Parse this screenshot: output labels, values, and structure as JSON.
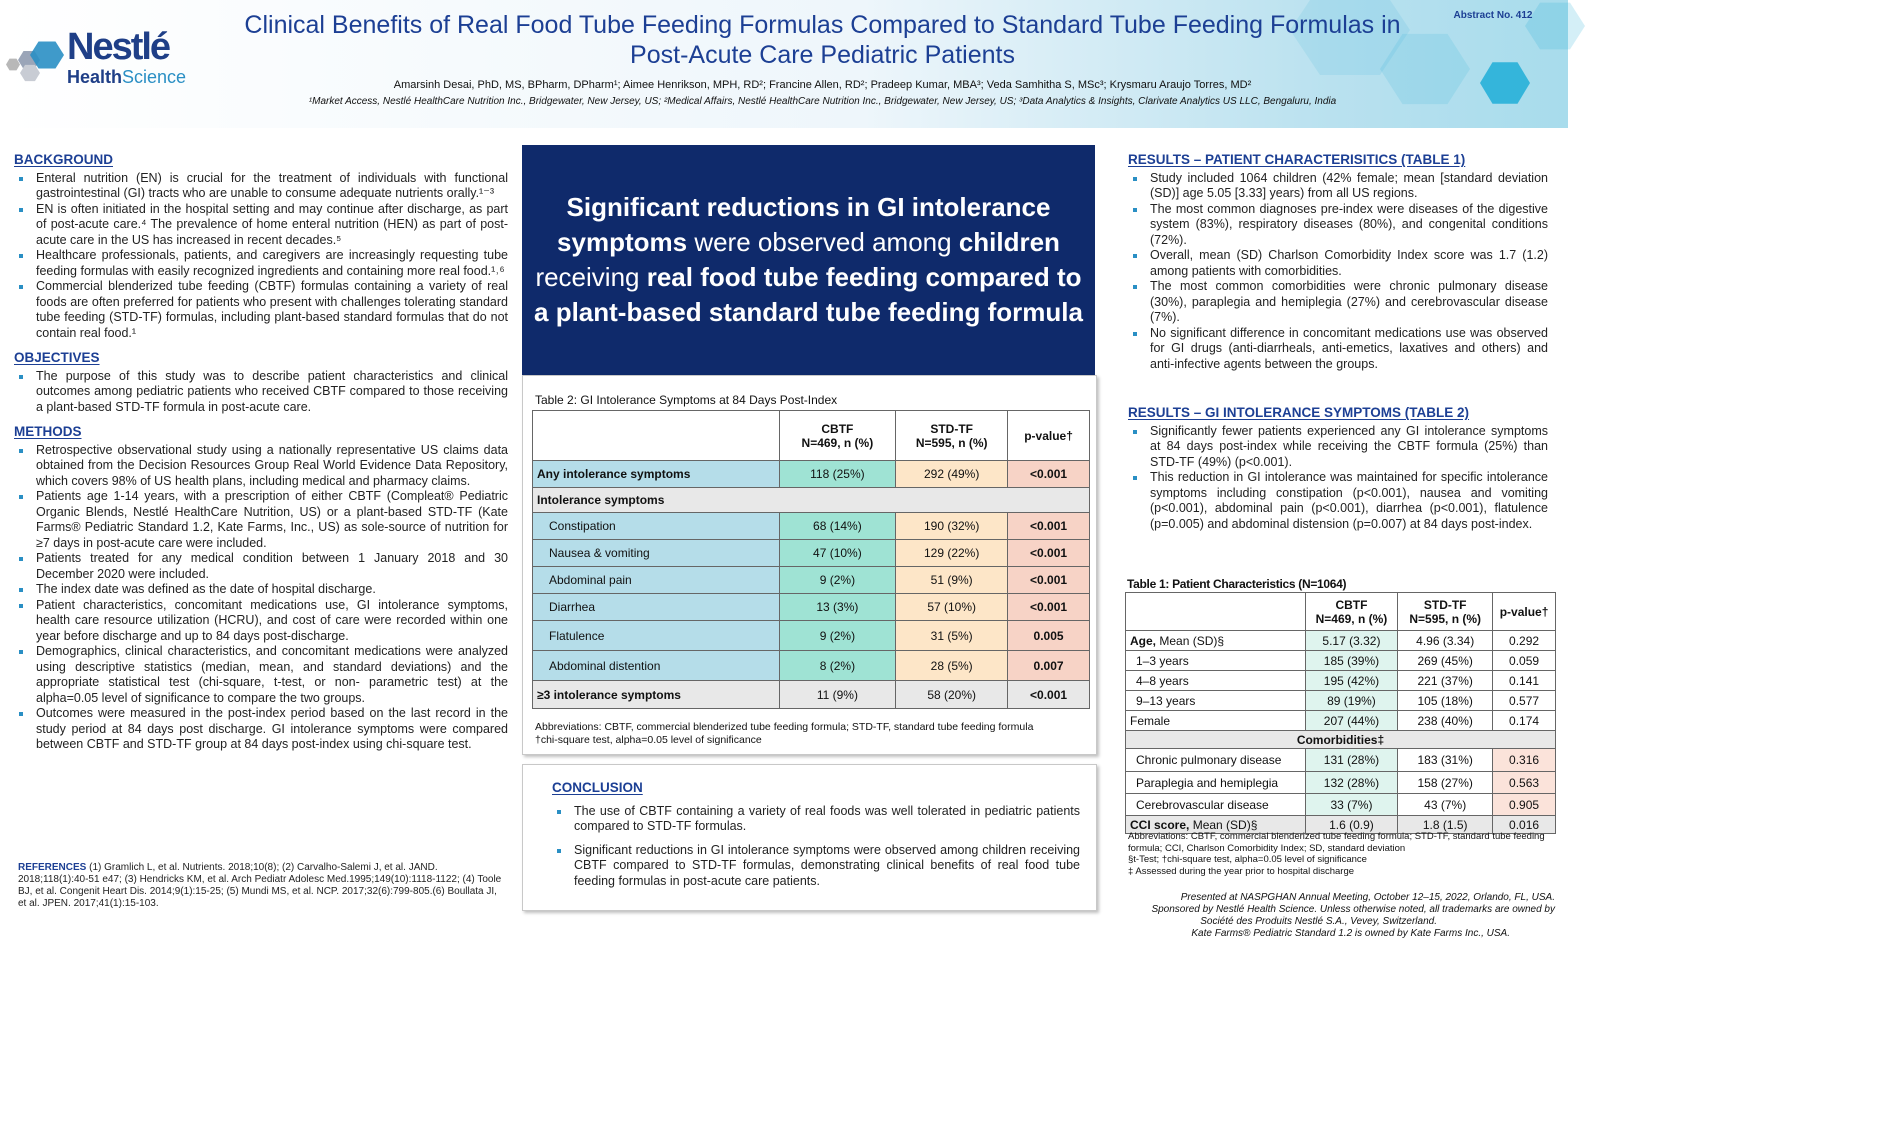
{
  "header": {
    "logo_line1": "Nestlé",
    "logo_line2a": "Health",
    "logo_line2b": "Science",
    "title_line1": "Clinical Benefits of Real Food Tube Feeding Formulas Compared to Standard Tube Feeding Formulas in",
    "title_line2": "Post-Acute Care Pediatric Patients",
    "authors": "Amarsinh Desai, PhD, MS, BPharm, DPharm¹; Aimee Henrikson, MPH, RD²; Francine Allen, RD²; Pradeep Kumar, MBA³; Veda Samhitha S, MSc³; Krysmaru Araujo Torres, MD²",
    "affiliations": "¹Market Access, Nestlé HealthCare Nutrition Inc., Bridgewater, New Jersey, US; ²Medical Affairs, Nestlé HealthCare Nutrition Inc., Bridgewater, New Jersey, US; ³Data Analytics & Insights, Clarivate Analytics US LLC, Bengaluru, India",
    "abstract_no": "Abstract No. 412"
  },
  "background": {
    "heading": "BACKGROUND",
    "items": [
      "Enteral nutrition (EN) is crucial for the treatment of individuals with functional gastrointestinal (GI) tracts who are unable to consume adequate nutrients orally.¹⁻³",
      "EN is often initiated in the hospital setting and may continue after discharge, as part of post-acute care.⁴ The prevalence of home enteral nutrition (HEN) as part of post-acute care in the US has increased in recent decades.⁵",
      "Healthcare professionals, patients, and caregivers are increasingly requesting tube feeding formulas with easily recognized ingredients and containing more real food.¹˒⁶",
      "Commercial blenderized tube feeding (CBTF) formulas containing a variety of real foods are often preferred for patients who present with challenges tolerating standard tube feeding (STD-TF) formulas, including plant-based standard formulas that do not contain real food.¹"
    ]
  },
  "objectives": {
    "heading": "OBJECTIVES",
    "items": [
      "The purpose of this study was to describe patient characteristics and clinical outcomes among pediatric patients who received CBTF compared to those receiving a plant-based STD-TF formula in post-acute care."
    ]
  },
  "methods": {
    "heading": "METHODS",
    "items": [
      "Retrospective observational study using a nationally representative US claims data obtained from the Decision Resources Group Real World Evidence Data Repository, which covers 98% of US health plans, including medical and pharmacy claims.",
      "Patients age 1-14 years, with a prescription of either CBTF (Compleat® Pediatric Organic Blends, Nestlé HealthCare Nutrition, US) or a plant-based STD-TF (Kate Farms® Pediatric Standard 1.2, Kate Farms, Inc., US) as sole-source of nutrition for ≥7 days in post-acute care were included.",
      "Patients treated for any medical condition between 1 January 2018 and 30 December 2020 were included.",
      "The index date was defined as the date of hospital discharge.",
      "Patient characteristics, concomitant medications use, GI intolerance symptoms, health care resource utilization (HCRU), and cost of care were recorded within one year before discharge and up to 84 days post-discharge.",
      "Demographics, clinical characteristics, and concomitant medications were analyzed using descriptive statistics (median, mean, and standard deviations) and the appropriate statistical test (chi-square, t-test, or non- parametric test) at the alpha=0.05 level of significance to compare the two groups.",
      "Outcomes were measured in the post-index period based on the last record in the study period at 84 days post discharge. GI intolerance symptoms were compared between CBTF and STD-TF group at 84 days post-index using chi-square test."
    ]
  },
  "references": {
    "label": "REFERENCES",
    "text": "(1) Gramlich L, et al. Nutrients. 2018;10(8); (2) Carvalho-Salemi J, et al. JAND. 2018;118(1):40-51 e47; (3) Hendricks KM, et al. Arch Pediatr Adolesc Med.1995;149(10):1118-1122; (4) Toole BJ, et al. Congenit Heart Dis. 2014;9(1):15-25; (5) Mundi MS, et al. NCP. 2017;32(6):799-805.(6) Boullata JI, et al. JPEN. 2017;41(1):15-103."
  },
  "highlight": {
    "p1": "Significant reductions in GI intolerance symptoms",
    "p2": " were observed among ",
    "p3": "children",
    "p4": " receiving ",
    "p5": "real food tube feeding compared to a plant-based standard tube feeding formula"
  },
  "table2": {
    "caption": "Table 2: GI Intolerance Symptoms at 84 Days Post-Index",
    "col_cbtf": "CBTF",
    "col_cbtf_n": "N=469, n (%)",
    "col_std": "STD-TF",
    "col_std_n": "N=595, n (%)",
    "col_p": "p-value†",
    "any": {
      "label": "Any intolerance symptoms",
      "cbtf": "118 (25%)",
      "std": "292 (49%)",
      "p": "<0.001"
    },
    "section": "Intolerance symptoms",
    "rows": [
      {
        "label": "Constipation",
        "cbtf": "68 (14%)",
        "std": "190 (32%)",
        "p": "<0.001"
      },
      {
        "label": "Nausea & vomiting",
        "cbtf": "47 (10%)",
        "std": "129 (22%)",
        "p": "<0.001"
      },
      {
        "label": "Abdominal pain",
        "cbtf": "9 (2%)",
        "std": "51 (9%)",
        "p": "<0.001"
      },
      {
        "label": "Diarrhea",
        "cbtf": "13 (3%)",
        "std": "57 (10%)",
        "p": "<0.001"
      },
      {
        "label": "Flatulence",
        "cbtf": "9 (2%)",
        "std": "31 (5%)",
        "p": "0.005"
      },
      {
        "label": "Abdominal distention",
        "cbtf": "8 (2%)",
        "std": "28 (5%)",
        "p": "0.007"
      }
    ],
    "ge3": {
      "label": "≥3 intolerance symptoms",
      "cbtf": "11 (9%)",
      "std": "58 (20%)",
      "p": "<0.001"
    },
    "abbr": "Abbreviations: CBTF, commercial blenderized tube feeding formula; STD-TF, standard tube feeding formula",
    "note": "†chi-square test, alpha=0.05 level of significance"
  },
  "conclusion": {
    "heading": "CONCLUSION",
    "items": [
      "The use of CBTF containing a variety of real foods was well tolerated in pediatric patients compared to STD-TF formulas.",
      "Significant reductions in GI intolerance symptoms were observed among children receiving CBTF compared to STD-TF formulas, demonstrating clinical benefits of real food tube feeding formulas in post-acute care patients."
    ]
  },
  "results1": {
    "heading": "RESULTS – PATIENT CHARACTERISITICS (TABLE 1)",
    "items": [
      "Study included 1064 children (42% female; mean [standard deviation (SD)] age 5.05 [3.33] years) from all US regions.",
      "The most common diagnoses pre-index were diseases of the digestive system (83%), respiratory diseases (80%), and congenital conditions (72%).",
      "Overall, mean (SD) Charlson Comorbidity Index score was 1.7 (1.2) among patients with comorbidities.",
      "The most common comorbidities were chronic pulmonary disease (30%), paraplegia and hemiplegia (27%) and cerebrovascular disease (7%).",
      "No significant difference in concomitant medications use was observed for GI drugs (anti-diarrheals, anti-emetics, laxatives and others) and anti-infective agents between the groups."
    ]
  },
  "results2": {
    "heading": "RESULTS – GI INTOLERANCE SYMPTOMS (TABLE 2)",
    "items": [
      "Significantly fewer patients experienced any GI intolerance symptoms at 84 days post-index while receiving the CBTF formula (25%) than STD-TF (49%) (p<0.001).",
      "This reduction in GI intolerance was maintained for specific intolerance symptoms including constipation (p<0.001), nausea and vomiting (p<0.001), abdominal pain (p<0.001), diarrhea (p<0.001), flatulence (p=0.005) and abdominal distension (p=0.007) at 84 days post-index."
    ]
  },
  "table1": {
    "caption": "Table 1: Patient Characteristics (N=1064)",
    "col_cbtf": "CBTF",
    "col_cbtf_n": "N=469, n (%)",
    "col_std": "STD-TF",
    "col_std_n": "N=595, n (%)",
    "col_p": "p-value†",
    "age_label": "Age,",
    "age_sub": " Mean (SD)§",
    "age": {
      "cbtf": "5.17 (3.32)",
      "std": "4.96 (3.34)",
      "p": "0.292"
    },
    "age_rows": [
      {
        "label": "1–3 years",
        "cbtf": "185 (39%)",
        "std": "269 (45%)",
        "p": "0.059"
      },
      {
        "label": "4–8 years",
        "cbtf": "195 (42%)",
        "std": "221 (37%)",
        "p": "0.141"
      },
      {
        "label": "9–13 years",
        "cbtf": "89 (19%)",
        "std": "105 (18%)",
        "p": "0.577"
      },
      {
        "label": "Female",
        "cbtf": "207 (44%)",
        "std": "238 (40%)",
        "p": "0.174"
      }
    ],
    "comorb": "Comorbidities‡",
    "comorb_rows": [
      {
        "label": "Chronic pulmonary disease",
        "cbtf": "131 (28%)",
        "std": "183 (31%)",
        "p": "0.316"
      },
      {
        "label": "Paraplegia and hemiplegia",
        "cbtf": "132 (28%)",
        "std": "158 (27%)",
        "p": "0.563"
      },
      {
        "label": "Cerebrovascular disease",
        "cbtf": "33 (7%)",
        "std": "43 (7%)",
        "p": "0.905"
      }
    ],
    "cci_label": "CCI score,",
    "cci_sub": " Mean (SD)§",
    "cci": {
      "cbtf": "1.6 (0.9)",
      "std": "1.8 (1.5)",
      "p": "0.016"
    },
    "abbr": "Abbreviations: CBTF, commercial blenderized tube feeding formula; STD-TF, standard tube feeding formula; CCI, Charlson Comorbidity Index; SD, standard deviation",
    "note1": "§t-Test; †chi-square test, alpha=0.05 level of significance",
    "note2": "‡ Assessed during the year prior to hospital discharge"
  },
  "footer": {
    "l1": "Presented at NASPGHAN Annual Meeting, October 12–15, 2022, Orlando, FL, USA.",
    "l2": "Sponsored by Nestlé Health Science. Unless otherwise noted, all trademarks are owned by",
    "l3": "Société des Produits Nestlé S.A., Vevey, Switzerland.",
    "l4": "Kate Farms® Pediatric Standard 1.2 is owned by Kate Farms Inc., USA."
  }
}
